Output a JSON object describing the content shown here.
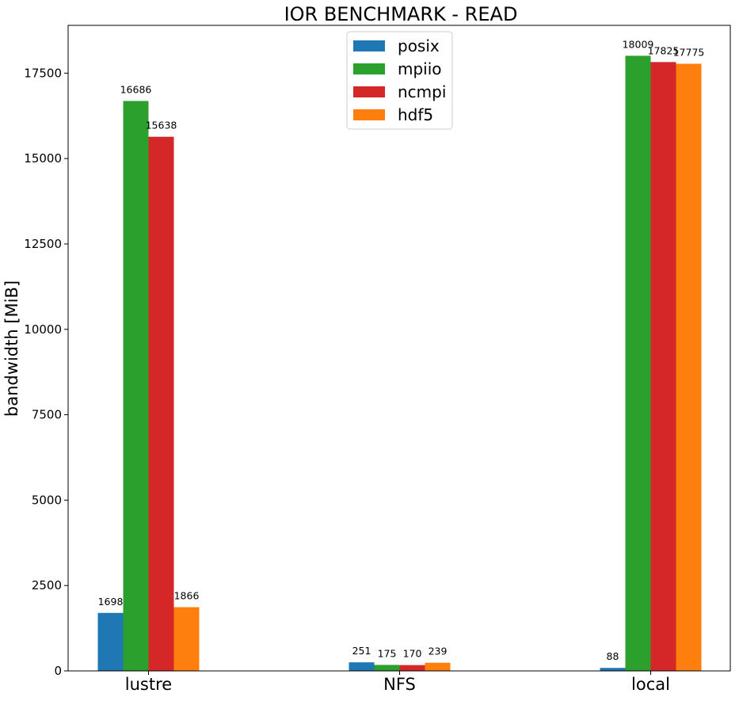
{
  "chart_data": {
    "type": "bar",
    "title": "IOR BENCHMARK - READ",
    "xlabel": "",
    "ylabel": "bandwidth [MiB]",
    "categories": [
      "lustre",
      "NFS",
      "local"
    ],
    "series": [
      {
        "name": "posix",
        "color": "#1f77b4",
        "values": [
          1698,
          251,
          88
        ]
      },
      {
        "name": "mpiio",
        "color": "#2ca02c",
        "values": [
          16686,
          175,
          18009
        ]
      },
      {
        "name": "ncmpi",
        "color": "#d62728",
        "values": [
          15638,
          170,
          17825
        ]
      },
      {
        "name": "hdf5",
        "color": "#ff7f0e",
        "values": [
          1866,
          239,
          17775
        ]
      }
    ],
    "data_labels": [
      [
        "1698",
        "251",
        "88"
      ],
      [
        "16686",
        "175",
        "18009"
      ],
      [
        "15638",
        "170",
        "17825"
      ],
      [
        "1866",
        "239",
        "17775"
      ]
    ],
    "ylim": [
      0,
      18900
    ],
    "yticks": [
      0,
      2500,
      5000,
      7500,
      10000,
      12500,
      15000,
      17500
    ],
    "ytick_labels": [
      "0",
      "2500",
      "5000",
      "7500",
      "10000",
      "12500",
      "15000",
      "17500"
    ],
    "grid": false,
    "legend_position": "top-center"
  }
}
